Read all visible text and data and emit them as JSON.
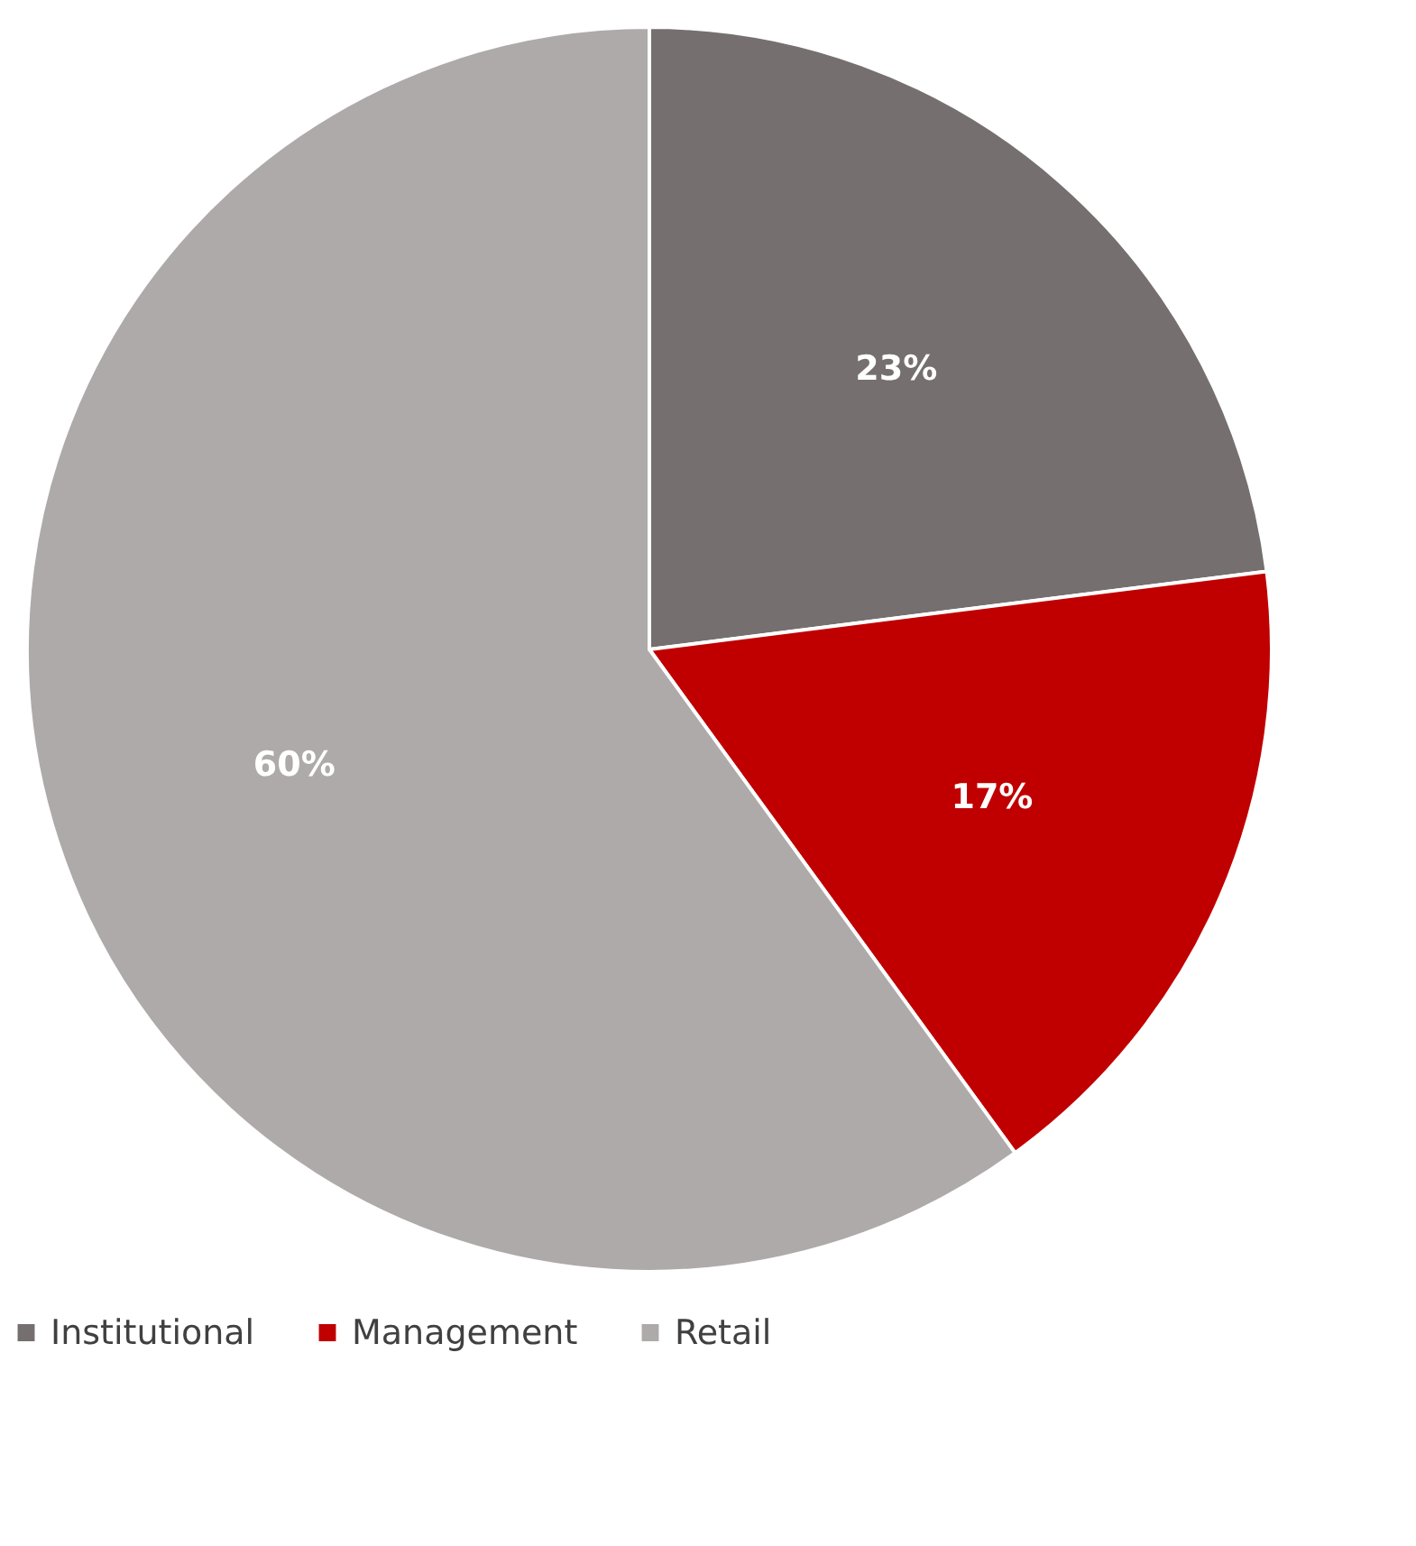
{
  "chart_data": {
    "type": "pie",
    "categories": [
      "Institutional",
      "Management",
      "Retail"
    ],
    "values": [
      23,
      17,
      60
    ],
    "colors": [
      "#756f6f",
      "#c00000",
      "#afaaaa"
    ],
    "value_labels": [
      "23%",
      "17%",
      "60%"
    ],
    "legend": "bottom"
  }
}
